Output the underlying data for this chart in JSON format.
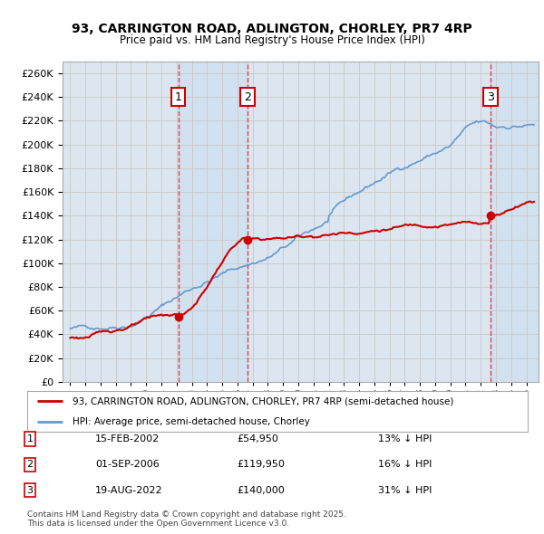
{
  "title1": "93, CARRINGTON ROAD, ADLINGTON, CHORLEY, PR7 4RP",
  "title2": "Price paid vs. HM Land Registry's House Price Index (HPI)",
  "ylim": [
    0,
    270000
  ],
  "yticks": [
    0,
    20000,
    40000,
    60000,
    80000,
    100000,
    120000,
    140000,
    160000,
    180000,
    200000,
    220000,
    240000,
    260000
  ],
  "xlim_start": 1994.5,
  "xlim_end": 2025.8,
  "sale_dates_num": [
    2002.12,
    2006.67,
    2022.63
  ],
  "sale_prices": [
    54950,
    119950,
    140000
  ],
  "sale_labels": [
    "1",
    "2",
    "3"
  ],
  "sale_date_strs": [
    "15-FEB-2002",
    "01-SEP-2006",
    "19-AUG-2022"
  ],
  "sale_price_strs": [
    "£54,950",
    "£119,950",
    "£140,000"
  ],
  "sale_hpi_strs": [
    "13% ↓ HPI",
    "16% ↓ HPI",
    "31% ↓ HPI"
  ],
  "red_color": "#cc0000",
  "blue_color": "#6699cc",
  "box_color": "#cc0000",
  "vline_color": "#dd3333",
  "grid_color": "#cccccc",
  "plot_bg_color": "#dce6f0",
  "legend_label_red": "93, CARRINGTON ROAD, ADLINGTON, CHORLEY, PR7 4RP (semi-detached house)",
  "legend_label_blue": "HPI: Average price, semi-detached house, Chorley",
  "footnote": "Contains HM Land Registry data © Crown copyright and database right 2025.\nThis data is licensed under the Open Government Licence v3.0."
}
